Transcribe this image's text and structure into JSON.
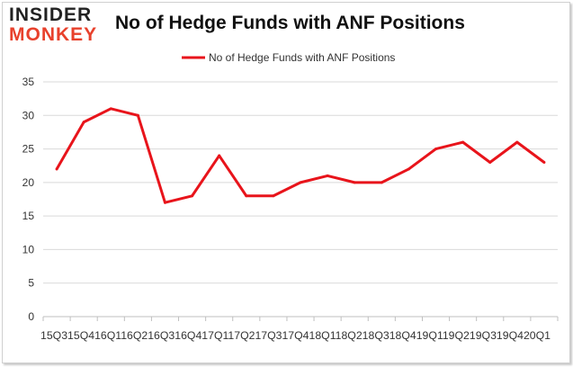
{
  "logo": {
    "line1": "INSIDER",
    "line2": "MONKEY"
  },
  "chart_data": {
    "type": "line",
    "title": "No of Hedge Funds with ANF Positions",
    "categories": [
      "15Q3",
      "15Q4",
      "16Q1",
      "16Q2",
      "16Q3",
      "16Q4",
      "17Q1",
      "17Q2",
      "17Q3",
      "17Q4",
      "18Q1",
      "18Q2",
      "18Q3",
      "18Q4",
      "19Q1",
      "19Q2",
      "19Q3",
      "19Q4",
      "20Q1"
    ],
    "x_tick_text": "15Q315Q416Q116Q216Q316Q417Q117Q217Q317Q418Q118Q218Q318Q419Q119Q219Q319Q420Q1",
    "series": [
      {
        "name": "No of Hedge Funds with ANF Positions",
        "values": [
          22,
          29,
          31,
          30,
          17,
          18,
          24,
          18,
          18,
          20,
          21,
          20,
          20,
          22,
          25,
          26,
          23,
          26,
          23
        ]
      }
    ],
    "ylim": [
      0,
      35
    ],
    "yticks": [
      0,
      5,
      10,
      15,
      20,
      25,
      30,
      35
    ],
    "grid": true,
    "legend_position": "top",
    "line_color": "#e8141b"
  }
}
